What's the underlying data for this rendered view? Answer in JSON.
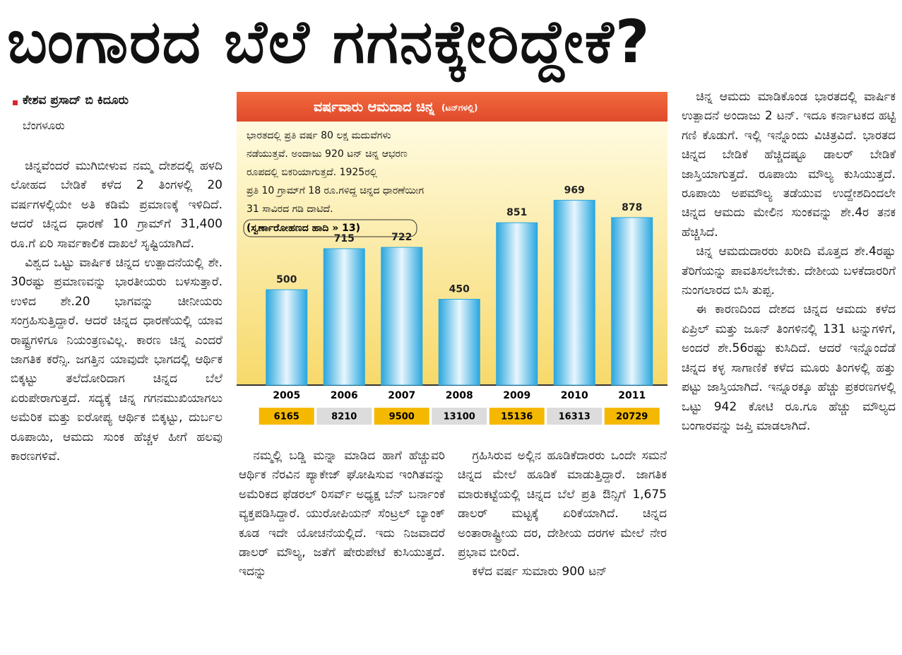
{
  "header": {
    "title": "ಬಂಗಾರದ ಬೆಲೆ ಗಗನಕ್ಕೇರಿದ್ದೇಕೆ?"
  },
  "byline": {
    "author": "ಕೇಶವ ಪ್ರಸಾದ್ ಬಿ ಕಿದೂರು",
    "place": "ಬೆಂಗಳೂರು"
  },
  "article": {
    "columns": [
      [
        "ಚಿನ್ನವೆಂದರೆ ಮುಗಿಬೀಳುವ ನಮ್ಮ ದೇಶದಲ್ಲಿ ಹಳದಿ ಲೋಹದ ಬೇಡಿಕೆ ಕಳೆದ 2 ತಿಂಗಳಲ್ಲಿ 20 ವರ್ಷಗಳಲ್ಲಿಯೇ ಅತಿ ಕಡಿಮೆ ಪ್ರಮಾಣಕ್ಕೆ ಇಳಿದಿದೆ. ಆದರೆ ಚಿನ್ನದ ಧಾರಣೆ 10 ಗ್ರಾಮ್‌ಗೆ 31,400 ರೂ.ಗೆ ಏರಿ ಸಾರ್ವಕಾಲಿಕ ದಾಖಲೆ ಸೃಷ್ಟಿಯಾಗಿದೆ.",
        "ವಿಶ್ವದ ಒಟ್ಟು ವಾರ್ಷಿಕ ಚಿನ್ನದ ಉತ್ಪಾದನೆಯಲ್ಲಿ ಶೇ. 30ರಷ್ಟು ಪ್ರಮಾಣವನ್ನು ಭಾರತೀಯರು ಬಳಸುತ್ತಾರೆ. ಉಳಿದ ಶೇ.20 ಭಾಗವನ್ನು ಚೀನೀಯರು ಸಂಗ್ರಹಿಸುತ್ತಿದ್ದಾರೆ. ಆದರೆ ಚಿನ್ನದ ಧಾರಣೆಯಲ್ಲಿ ಯಾವ ರಾಷ್ಟ್ರಗಳಿಗೂ ನಿಯಂತ್ರಣವಿಲ್ಲ. ಕಾರಣ ಚಿನ್ನ ಎಂದರೆ ಜಾಗತಿಕ ಕರೆನ್ಸಿ. ಜಗತ್ತಿನ ಯಾವುದೇ ಭಾಗದಲ್ಲಿ ಆರ್ಥಿಕ ಬಿಕ್ಕಟ್ಟು ತಲೆದೋರಿದಾಗ ಚಿನ್ನದ ಬೆಲೆ ಏರುಪೇರಾಗುತ್ತದೆ. ಸದ್ಯಕ್ಕೆ ಚಿನ್ನ ಗಗನಮುಖಿಯಾಗಲು ಅಮೆರಿಕ ಮತ್ತು ಐರೋಪ್ಯ ಆರ್ಥಿಕ ಬಿಕ್ಕಟ್ಟು, ದುರ್ಬಲ ರೂಪಾಯಿ, ಆಮದು ಸುಂಕ ಹೆಚ್ಚಳ ಹೀಗೆ ಹಲವು ಕಾರಣಗಳಿವೆ."
      ],
      [
        "ನಮ್ಮಲ್ಲಿ ಬಡ್ಡಿ ಮನ್ನಾ ಮಾಡಿದ ಹಾಗೆ ಹೆಚ್ಚುವರಿ ಆರ್ಥಿಕ ನೆರವಿನ ಪ್ಯಾಕೇಜ್ ಘೋಷಿಸುವ ಇಂಗಿತವನ್ನು ಅಮೆರಿಕದ ಫೆಡರಲ್ ರಿಸರ್ವ್ ಅಧ್ಯಕ್ಷ ಬೆನ್ ಬರ್ನಾಂಕೆ ವ್ಯಕ್ತಪಡಿಸಿದ್ದಾರೆ. ಯುರೋಪಿಯನ್ ಸೆಂಟ್ರಲ್ ಬ್ಯಾಂಕ್ ಕೂಡ ಇದೇ ಯೋಚನೆಯಲ್ಲಿದೆ. ಇದು ನಿಜವಾದರೆ ಡಾಲರ್ ಮೌಲ್ಯ, ಜತೆಗೆ ಷೇರುಪೇಟೆ ಕುಸಿಯುತ್ತದೆ. ಇದನ್ನು"
      ],
      [
        "ಗ್ರಹಿಸಿರುವ ಅಲ್ಲಿನ ಹೂಡಿಕೆದಾರರು ಒಂದೇ ಸಮನೆ ಚಿನ್ನದ ಮೇಲೆ ಹೂಡಿಕೆ ಮಾಡುತ್ತಿದ್ದಾರೆ. ಜಾಗತಿಕ ಮಾರುಕಟ್ಟೆಯಲ್ಲಿ ಚಿನ್ನದ ಬೆಲೆ ಪ್ರತಿ ಔನ್ಸಿಗೆ 1,675 ಡಾಲರ್ ಮಟ್ಟಕ್ಕೆ ಏರಿಕೆಯಾಗಿದೆ. ಚಿನ್ನದ ಅಂತಾರಾಷ್ಟ್ರೀಯ ದರ, ದೇಶೀಯ ದರಗಳ ಮೇಲೆ ನೇರ ಪ್ರಭಾವ ಬೀರಿದೆ.",
        "ಕಳೆದ ವರ್ಷ ಸುಮಾರು 900 ಟನ್"
      ],
      [
        "ಚಿನ್ನ ಆಮದು ಮಾಡಿಕೊಂಡ ಭಾರತದಲ್ಲಿ ವಾರ್ಷಿಕ ಉತ್ಪಾದನೆ ಅಂದಾಜು 2 ಟನ್. ಇದೂ ಕರ್ನಾಟಕದ ಹಟ್ಟಿ ಗಣಿ ಕೊಡುಗೆ. ಇಲ್ಲಿ ಇನ್ನೊಂದು ವಿಚಿತ್ರವಿದೆ. ಭಾರತದ ಚಿನ್ನದ ಬೇಡಿಕೆ ಹೆಚ್ಚಿದಷ್ಟೂ ಡಾಲರ್ ಬೇಡಿಕೆ ಜಾಸ್ತಿಯಾಗುತ್ತದೆ. ರೂಪಾಯಿ ಮೌಲ್ಯ ಕುಸಿಯುತ್ತದೆ. ರೂಪಾಯಿ ಅಪಮೌಲ್ಯ ತಡೆಯುವ ಉದ್ದೇಶದಿಂದಲೇ ಚಿನ್ನದ ಆಮದು ಮೇಲಿನ ಸುಂಕವನ್ನು ಶೇ.4ರ ತನಕ ಹೆಚ್ಚಿಸಿದೆ.",
        "ಚಿನ್ನ ಆಮದುದಾರರು ಖರೀದಿ ಮೊತ್ತದ ಶೇ.4ರಷ್ಟು ತೆರಿಗೆಯನ್ನು ಪಾವತಿಸಲೇಬೇಕು. ದೇಶೀಯ ಬಳಕೆದಾರರಿಗೆ ನುಂಗಲಾರದ ಬಿಸಿ ತುಪ್ಪ.",
        "ಈ ಕಾರಣದಿಂದ ದೇಶದ ಚಿನ್ನದ ಆಮದು ಕಳೆದ ಏಪ್ರಿಲ್ ಮತ್ತು ಜೂನ್ ತಿಂಗಳಿನಲ್ಲಿ 131 ಟನ್ನುಗಳಿಗೆ, ಅಂದರೆ ಶೇ.56ರಷ್ಟು ಕುಸಿದಿದೆ. ಆದರೆ ಇನ್ನೊಂದೆಡೆ ಚಿನ್ನದ ಕಳ್ಳ ಸಾಗಾಣಿಕೆ ಕಳೆದ ಮೂರು ತಿಂಗಳಲ್ಲಿ ಹತ್ತು ಪಟ್ಟು ಜಾಸ್ತಿಯಾಗಿದೆ. ಇನ್ನೂರಕ್ಕೂ ಹೆಚ್ಚು ಪ್ರಕರಣಗಳಲ್ಲಿ ಒಟ್ಟು 942 ಕೋಟಿ ರೂ.ಗೂ ಹೆಚ್ಚು ಮೌಲ್ಯದ ಬಂಗಾರವನ್ನು ಜಪ್ತಿ ಮಾಡಲಾಗಿದೆ."
      ]
    ]
  },
  "chart_data": {
    "type": "bar",
    "title": "ವರ್ಷವಾರು ಆಮದಾದ ಚಿನ್ನ",
    "unit": "(ಟನ್‌ಗಳಲ್ಲಿ)",
    "note": [
      "ಭಾರತದಲ್ಲಿ ಪ್ರತಿ ವರ್ಷ 80 ಲಕ್ಷ ಮದುವೆಗಳು",
      "ನಡೆಯುತ್ತವೆ. ಅಂದಾಜು 920 ಟನ್ ಚಿನ್ನ ಆಭರಣ",
      "ರೂಪದಲ್ಲಿ ಬಿಕರಿಯಾಗುತ್ತದೆ. 1925ರಲ್ಲಿ",
      "ಪ್ರತಿ 10 ಗ್ರಾಮ್‌ಗೆ 18 ರೂ.ಗಳಿದ್ದ ಚಿನ್ನದ ಧಾರಣೆಯೀಗ",
      "31 ಸಾವಿರದ ಗಡಿ ದಾಟಿದೆ."
    ],
    "reference": "(ಸ್ವರ್ಣಾರೋಹಣದ ಹಾದಿ » 13)",
    "categories": [
      "2005",
      "2006",
      "2007",
      "2008",
      "2009",
      "2010",
      "2011"
    ],
    "values": [
      500,
      715,
      722,
      450,
      851,
      969,
      878
    ],
    "color": "#2aa7df",
    "row_values": [
      6165,
      8210,
      9500,
      13100,
      15136,
      16313,
      20729
    ]
  }
}
